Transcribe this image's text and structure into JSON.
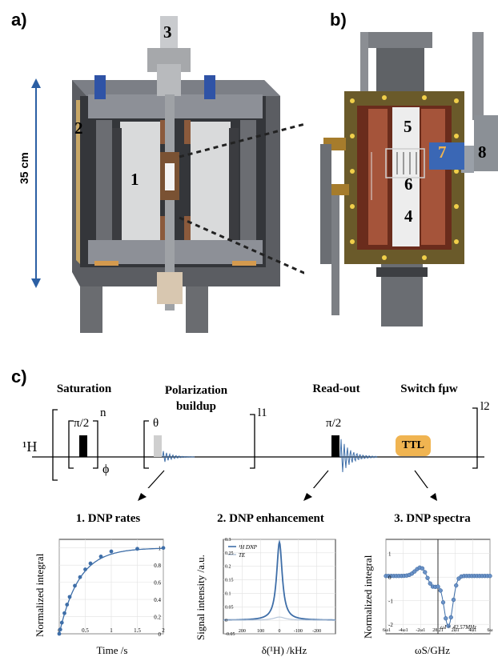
{
  "panels": {
    "a": {
      "label": "a)",
      "dimension": "35 cm",
      "parts": [
        "1",
        "2",
        "3"
      ]
    },
    "b": {
      "label": "b)",
      "parts": [
        "4",
        "5",
        "6",
        "7",
        "8"
      ]
    },
    "c": {
      "label": "c)"
    }
  },
  "sequence": {
    "nucleus": "¹H",
    "blocks": {
      "saturation": "Saturation",
      "polarization": "Polarization\nbuildup",
      "readout": "Read-out",
      "switch": "Switch fμw"
    },
    "pulses": {
      "sat": "π/2",
      "buildup": "θ",
      "readout": "π/2"
    },
    "loops": {
      "n": "n",
      "l1": "l1",
      "l2": "l2"
    },
    "phase": "ϕ",
    "ttl": "TTL"
  },
  "subplots": {
    "rates": {
      "title": "1. DNP rates",
      "ylabel": "Normalized integral",
      "xlabel": "Time /s"
    },
    "enhancement": {
      "title": "2. DNP enhancement",
      "ylabel": "Signal intensity /a.u.",
      "xlabel": "δ(¹H) /kHz",
      "legend": [
        "¹H DNP",
        "TE"
      ]
    },
    "spectra": {
      "title": "3. DNP spectra",
      "ylabel": "Normalized integral",
      "xlabel": "ωS/GHz",
      "annotation": "ωI = 42.57MHz"
    }
  },
  "chart_data": [
    {
      "type": "scatter",
      "xlabel": "Time /s",
      "ylabel": "Normalized integral",
      "xlim": [
        0,
        2
      ],
      "ylim": [
        0,
        1.1
      ],
      "xticks": [
        0,
        0.5,
        1,
        1.5,
        2
      ],
      "yticks": [
        0,
        0.2,
        0.4,
        0.6,
        0.8,
        1
      ],
      "x": [
        0,
        0.02,
        0.05,
        0.1,
        0.15,
        0.2,
        0.3,
        0.4,
        0.5,
        0.6,
        0.8,
        1.0,
        1.5,
        2.0
      ],
      "y": [
        0,
        0.05,
        0.13,
        0.24,
        0.34,
        0.43,
        0.56,
        0.66,
        0.75,
        0.82,
        0.9,
        0.96,
        0.99,
        1.0
      ]
    },
    {
      "type": "line",
      "xlabel": "δ(¹H) /kHz",
      "ylabel": "Signal intensity /a.u.",
      "xlim": [
        300,
        -300
      ],
      "ylim": [
        -0.05,
        0.3
      ],
      "xticks": [
        200,
        100,
        0,
        -100,
        -200
      ],
      "yticks": [
        -0.05,
        0,
        0.05,
        0.1,
        0.15,
        0.2,
        0.25,
        0.3
      ],
      "series": [
        {
          "name": "¹H DNP",
          "color": "#3e6ea8",
          "peak": 0.29,
          "halfwidth_khz": 18
        },
        {
          "name": "TE",
          "color": "#b7c6d9",
          "peak": 0.012,
          "halfwidth_khz": 40
        }
      ]
    },
    {
      "type": "scatter",
      "xlabel": "ωS/GHz",
      "ylabel": "Normalized integral",
      "ylim": [
        -2.4,
        1.6
      ],
      "yticks": [
        -2,
        -1,
        0,
        1
      ],
      "xtick_labels": [
        "-6ω1",
        "-4ω1",
        "-2ω1",
        "28.21",
        "2ω1",
        "4ω1",
        "6ω"
      ],
      "annotation": "ωI = 42.57MHz"
    }
  ]
}
